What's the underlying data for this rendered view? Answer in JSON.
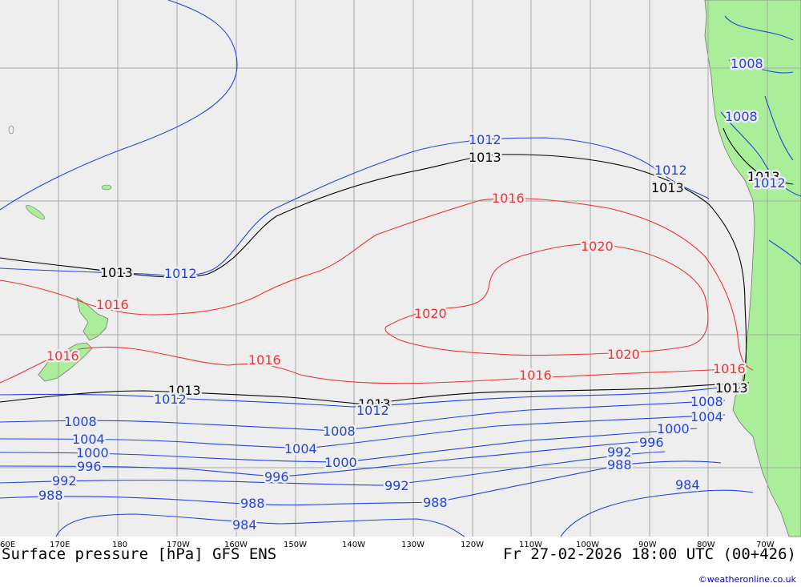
{
  "footer": {
    "title": "Surface pressure [hPa] GFS ENS",
    "valid_time": "Fr 27-02-2026 18:00 UTC (00+426)",
    "credit": "©weatheronline.co.uk"
  },
  "longitude_ticks": [
    "60E",
    "170E",
    "180",
    "170W",
    "160W",
    "150W",
    "140W",
    "130W",
    "120W",
    "110W",
    "100W",
    "90W",
    "80W",
    "70W"
  ],
  "isobar_labels": {
    "black": [
      "1013",
      "1013",
      "1013",
      "1013",
      "1013",
      "1013",
      "1013"
    ],
    "blue": [
      "1012",
      "1012",
      "1012",
      "1012",
      "1012",
      "1012",
      "1008",
      "1008",
      "1008",
      "1008",
      "1008",
      "1004",
      "1004",
      "1004",
      "1000",
      "1000",
      "1000",
      "996",
      "996",
      "996",
      "992",
      "992",
      "992",
      "988",
      "988",
      "988",
      "988",
      "984",
      "984"
    ],
    "red": [
      "1016",
      "1016",
      "1016",
      "1016",
      "1016",
      "1016",
      "1020",
      "1020",
      "1020"
    ]
  },
  "colors": {
    "ocean": "#eeeeee",
    "land": "#aaee99",
    "grid": "#a8a8a8",
    "isobar_low": "#2244dd",
    "isobar_standard": "#000000",
    "isobar_high": "#ee3333"
  }
}
